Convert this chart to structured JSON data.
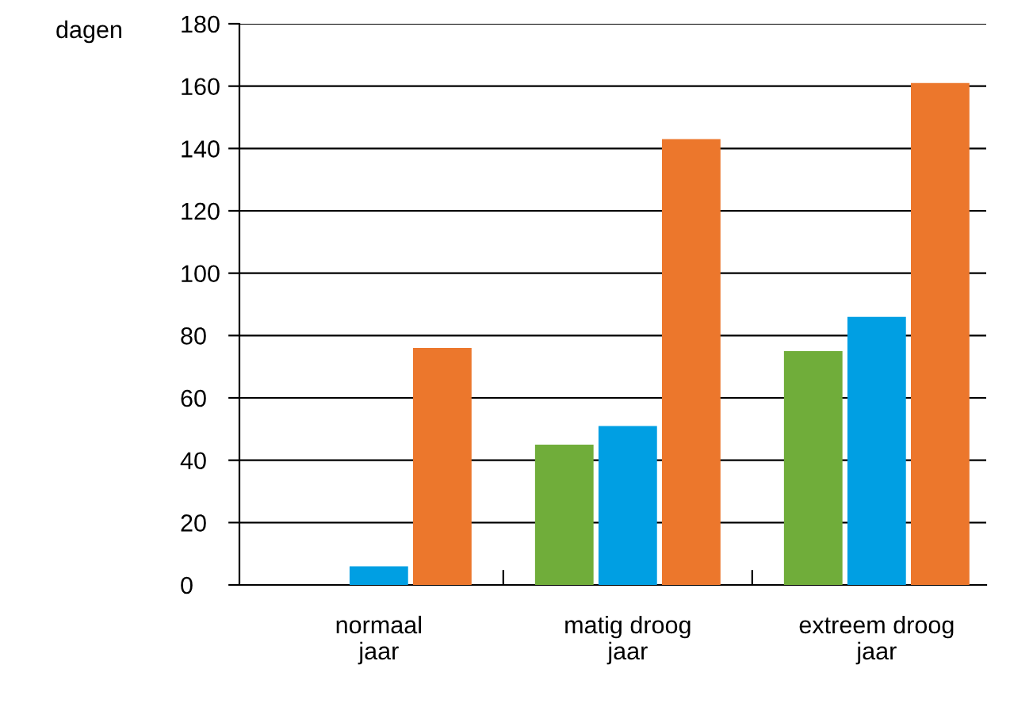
{
  "chart_data": {
    "type": "bar",
    "ylabel": "dagen",
    "categories": [
      "normaal\njaar",
      "matig droog\njaar",
      "extreem droog\njaar"
    ],
    "series": [
      {
        "color": "#70ad3a",
        "values": [
          0,
          45,
          75
        ]
      },
      {
        "color": "#009fe3",
        "values": [
          6,
          51,
          86
        ]
      },
      {
        "color": "#ec772c",
        "values": [
          76,
          143,
          161
        ]
      }
    ],
    "ylim": [
      0,
      180
    ],
    "yticks": [
      0,
      20,
      40,
      60,
      80,
      100,
      120,
      140,
      160,
      180
    ],
    "grid": "y",
    "legend": false
  }
}
